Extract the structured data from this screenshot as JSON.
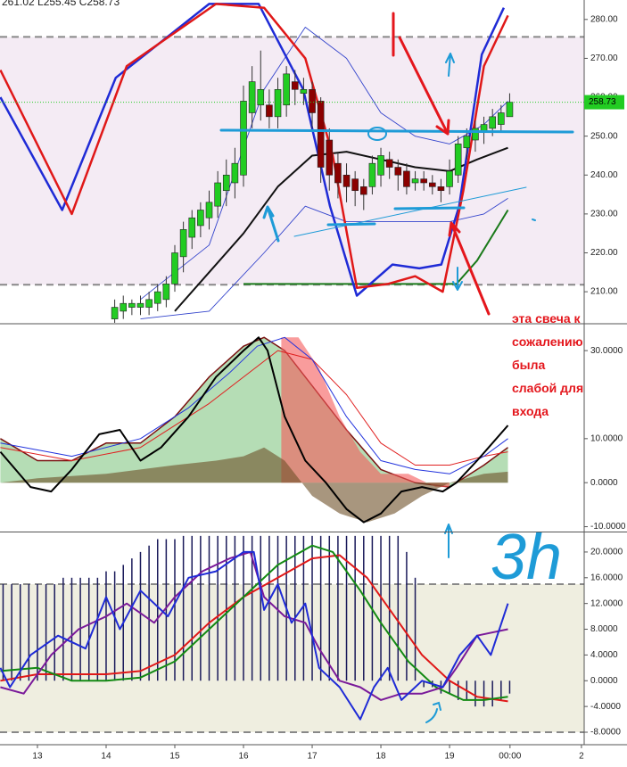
{
  "chart_data": [
    {
      "type": "candlestick",
      "header": "261.02 L255.45 C258.73",
      "x": [
        14.125,
        14.25,
        14.375,
        14.5,
        14.625,
        14.75,
        14.875,
        15,
        15.125,
        15.25,
        15.375,
        15.5,
        15.625,
        15.75,
        15.875,
        16,
        16.125,
        16.25,
        16.375,
        16.5,
        16.625,
        16.75,
        16.875,
        17,
        17.125,
        17.25,
        17.375,
        17.5,
        17.625,
        17.75,
        17.875,
        18,
        18.125,
        18.25,
        18.375,
        18.5,
        18.625,
        18.75,
        18.875,
        19,
        19.125,
        19.25,
        19.375,
        19.5,
        19.625,
        19.75,
        19.875
      ],
      "open": [
        203,
        205,
        206,
        206,
        206,
        207,
        208,
        212,
        219,
        224,
        227,
        229,
        232,
        236,
        238,
        240,
        256,
        258,
        258,
        255,
        258,
        264,
        261,
        262,
        259,
        249,
        243,
        240,
        239,
        237,
        237,
        240,
        244,
        242,
        241,
        238,
        239,
        238,
        237,
        237,
        240,
        247,
        249,
        251,
        252,
        253,
        255
      ],
      "high": [
        208,
        209,
        208,
        209,
        210,
        212,
        214,
        222,
        228,
        231,
        233,
        236,
        241,
        244,
        247,
        263,
        268,
        272,
        262,
        265,
        268,
        267,
        265,
        264,
        260,
        252,
        246,
        243,
        241,
        239,
        245,
        247,
        246,
        244,
        243,
        241,
        241,
        240,
        239,
        244,
        250,
        252,
        254,
        255,
        257,
        258,
        261.02
      ],
      "low": [
        200,
        203,
        204,
        204,
        204,
        205,
        206,
        210,
        215,
        221,
        224,
        226,
        229,
        232,
        234,
        237,
        252,
        254,
        252,
        252,
        255,
        258,
        258,
        252,
        238,
        236,
        234,
        233,
        232,
        231,
        235,
        237,
        239,
        236,
        235,
        236,
        236,
        235,
        233,
        235,
        238,
        244,
        246,
        248,
        250,
        251,
        255.45
      ],
      "close": [
        206,
        207,
        207,
        207,
        208,
        210,
        212,
        220,
        226,
        229,
        231,
        233,
        238,
        240,
        243,
        259,
        264,
        262,
        255,
        262,
        266,
        262,
        262,
        256,
        242,
        240,
        238,
        237,
        236,
        235,
        243,
        245,
        242,
        240,
        237,
        239,
        238,
        237,
        236,
        241,
        248,
        250,
        252,
        253,
        255,
        256,
        258.73
      ],
      "up_color": "#22cc22",
      "down_color": "#8b0000",
      "last": 258.73,
      "last_color": "#22cc22",
      "hlines": [
        275.5,
        211.8
      ],
      "shade": "#f4ebf4",
      "xlim": [
        12.455,
        20.96
      ],
      "ylim": [
        202,
        285
      ],
      "yticks": [
        {
          "value": 210,
          "label": "210.00"
        },
        {
          "value": 220,
          "label": "220.00"
        },
        {
          "value": 230,
          "label": "230.00"
        },
        {
          "value": 240,
          "label": "240.00"
        },
        {
          "value": 250,
          "label": "250.00"
        },
        {
          "value": 260,
          "label": "260.00"
        },
        {
          "value": 270,
          "label": "270.00"
        },
        {
          "value": 280,
          "label": "280.00"
        }
      ],
      "series": [
        {
          "color": "#3344cc",
          "width": 0.9,
          "x": [
            14.5,
            15.5,
            16.3,
            16.9,
            17.5,
            18.0,
            18.5,
            19.0,
            19.5,
            19.85
          ],
          "values": [
            208,
            222,
            262,
            278,
            270,
            256,
            250,
            248,
            253,
            259
          ]
        },
        {
          "color": "#3344cc",
          "width": 0.9,
          "x": [
            14.5,
            15.5,
            16.3,
            16.9,
            17.5,
            18.0,
            18.5,
            19.0,
            19.5,
            19.85
          ],
          "values": [
            203,
            205,
            220,
            232,
            228,
            228,
            228,
            228,
            230,
            234
          ]
        },
        {
          "color": "#111111",
          "width": 2,
          "x": [
            15.0,
            15.5,
            16.0,
            16.5,
            17.0,
            17.5,
            18.0,
            18.5,
            19.0,
            19.4,
            19.85
          ],
          "values": [
            205,
            215,
            225,
            237,
            245,
            246,
            244,
            242,
            241,
            244,
            247
          ]
        },
        {
          "color": "#1a7a1a",
          "width": 2,
          "x": [
            16.0,
            19.1,
            19.4,
            19.85
          ],
          "values": [
            212,
            212,
            218,
            231
          ]
        },
        {
          "color": "#1f2bd6",
          "width": 2.5,
          "x": [
            12.46,
            13.36,
            14.14,
            15.5,
            16.22,
            16.87,
            17.26,
            17.65,
            18.17,
            18.56,
            18.88,
            19.14,
            19.47,
            19.79
          ],
          "values": [
            260,
            231,
            265,
            284,
            284,
            262,
            232,
            209,
            217,
            216,
            217,
            232,
            271,
            283
          ]
        },
        {
          "color": "#e01818",
          "width": 2.5,
          "x": [
            12.46,
            13.5,
            14.3,
            15.6,
            16.3,
            16.9,
            17.3,
            17.65,
            18.1,
            18.5,
            18.9,
            19.2,
            19.5,
            19.85
          ],
          "values": [
            267,
            230,
            268,
            284,
            283,
            270,
            245,
            211,
            212,
            214,
            210,
            236,
            268,
            281
          ]
        }
      ],
      "annotations": [
        "эта свеча к",
        "сожалению",
        "была",
        "слабой для",
        "входа"
      ]
    },
    {
      "type": "lines",
      "xlim": [
        12.455,
        20.96
      ],
      "ylim": [
        -10.9,
        35.9
      ],
      "yticks": [
        {
          "value": -10,
          "label": "-10.0000"
        },
        {
          "value": 0,
          "label": "0.0000"
        },
        {
          "value": 10,
          "label": "10.0000"
        },
        {
          "value": 30,
          "label": "30.0000"
        }
      ],
      "series": [
        {
          "fill": "rgba(70,170,70,0.4)",
          "x": [
            12.46,
            13.0,
            13.5,
            14.0,
            14.5,
            15.0,
            15.5,
            16.0,
            16.3,
            16.6,
            17.0,
            17.5,
            18.0,
            18.5,
            19.0,
            19.5,
            19.85
          ],
          "values": [
            10,
            5,
            5,
            9,
            9,
            15,
            24,
            31,
            33,
            30,
            22,
            12,
            3,
            0,
            -1,
            4,
            8
          ],
          "color": "#7a1010",
          "width": 1.5
        },
        {
          "fill": "rgba(245,90,90,0.6)",
          "x": [
            16.55,
            16.8,
            17.1,
            17.4,
            17.7,
            18.0,
            18.4,
            18.8,
            19.0
          ],
          "values": [
            33,
            33,
            26,
            15,
            7,
            2,
            2,
            -1,
            -1
          ]
        },
        {
          "fill": "rgba(110,80,40,0.6)",
          "x": [
            12.46,
            13.0,
            14.0,
            15.0,
            15.6,
            16.0,
            16.3,
            16.6,
            17.0,
            17.4,
            17.8,
            18.2,
            18.6,
            19.0,
            19.5,
            19.85
          ],
          "values": [
            0,
            1,
            2,
            4,
            5,
            6,
            8,
            5,
            -3,
            -7,
            -9,
            -7,
            -3,
            0,
            2,
            2.5
          ]
        },
        {
          "color": "#e02020",
          "width": 1,
          "x": [
            12.46,
            13.5,
            14.5,
            15.5,
            16.5,
            17.0,
            17.5,
            18.0,
            18.5,
            19.0,
            19.5,
            19.85
          ],
          "values": [
            8,
            5,
            8,
            18,
            30,
            28,
            20,
            9,
            4,
            4,
            6,
            7
          ]
        },
        {
          "color": "#2233dd",
          "width": 1,
          "x": [
            12.46,
            13.5,
            14.5,
            15.2,
            15.8,
            16.2,
            16.6,
            17.0,
            17.5,
            18.0,
            18.5,
            19.0,
            19.5,
            19.85
          ],
          "values": [
            9,
            6,
            10,
            17,
            25,
            31,
            33,
            28,
            15,
            5,
            3,
            2,
            6,
            10
          ]
        },
        {
          "color": "#000000",
          "width": 2,
          "x": [
            12.46,
            12.9,
            13.2,
            13.5,
            13.9,
            14.2,
            14.5,
            14.8,
            15.2,
            15.6,
            16.0,
            16.22,
            16.35,
            16.6,
            16.9,
            17.2,
            17.5,
            17.75,
            18.0,
            18.3,
            18.6,
            18.9,
            19.1,
            19.4,
            19.85
          ],
          "values": [
            7,
            -1,
            -2,
            3,
            11,
            12,
            5,
            8,
            15,
            24,
            30,
            33,
            30,
            15,
            5,
            0,
            -6,
            -9,
            -7,
            -2,
            -1,
            -2,
            0,
            5,
            13
          ]
        }
      ]
    },
    {
      "type": "lines",
      "annotation": "3h",
      "hlines": [
        15,
        -8
      ],
      "shade": "#efeee0",
      "xlim": [
        12.455,
        20.96
      ],
      "ylim": [
        -9.94,
        22.9
      ],
      "xticks": [
        13,
        14,
        15,
        16,
        17,
        18,
        19,
        {
          "value": 19.88,
          "label": "00:00"
        },
        {
          "value": 20.92,
          "label": "2"
        }
      ],
      "yticks": [
        {
          "value": -8,
          "label": "-8.0000"
        },
        {
          "value": -4,
          "label": "-4.0000"
        },
        {
          "value": 0,
          "label": "0.0000"
        },
        {
          "value": 4,
          "label": "4.0000"
        },
        {
          "value": 8,
          "label": "8.0000"
        },
        {
          "value": 12,
          "label": "12.0000"
        },
        {
          "value": 16,
          "label": "16.0000"
        },
        {
          "value": 20,
          "label": "20.0000"
        }
      ],
      "bars": {
        "color": "#1a1a5a",
        "x": [
          12.5,
          12.625,
          12.75,
          12.875,
          13,
          13.125,
          13.25,
          13.375,
          13.5,
          13.625,
          13.75,
          13.875,
          14,
          14.125,
          14.25,
          14.375,
          14.5,
          14.625,
          14.75,
          14.875,
          15,
          15.125,
          15.25,
          15.375,
          15.5,
          15.625,
          15.75,
          15.875,
          16,
          16.125,
          16.25,
          16.375,
          16.5,
          16.625,
          16.75,
          16.875,
          17,
          17.125,
          17.25,
          17.375,
          17.5,
          17.625,
          17.75,
          17.875,
          18,
          18.125,
          18.25,
          18.375,
          18.5,
          18.625,
          18.75,
          18.875,
          19,
          19.125,
          19.25,
          19.375,
          19.5,
          19.625,
          19.75,
          19.875
        ],
        "values": [
          15,
          15,
          15,
          15,
          15,
          15,
          15,
          16,
          16,
          16,
          16,
          16,
          17,
          17,
          18,
          19,
          20,
          21,
          22,
          22,
          22,
          22.5,
          22.5,
          22.5,
          22.5,
          22.5,
          22.5,
          22.5,
          22.5,
          22.5,
          22.5,
          22.5,
          22.5,
          22.5,
          22.5,
          22.5,
          22.5,
          22.5,
          22.5,
          22.5,
          22.5,
          22.5,
          22.5,
          22.5,
          22.5,
          22.5,
          22.5,
          20,
          16,
          -1,
          -1,
          -2,
          -2,
          -3,
          -3,
          -4,
          -4,
          -4,
          -3,
          -2
        ]
      },
      "series": [
        {
          "color": "#e01818",
          "width": 2,
          "x": [
            12.46,
            13.0,
            13.5,
            14.0,
            14.5,
            15.0,
            15.5,
            16.0,
            16.5,
            17.0,
            17.4,
            17.8,
            18.2,
            18.6,
            19.0,
            19.4,
            19.85
          ],
          "values": [
            0,
            1,
            1,
            1,
            1.5,
            4,
            9,
            13,
            16,
            19,
            19.5,
            16,
            10,
            4,
            0,
            -2.5,
            -3.2
          ]
        },
        {
          "color": "#138a13",
          "width": 2,
          "x": [
            12.46,
            13.0,
            13.5,
            14.0,
            14.5,
            15.0,
            15.5,
            16.0,
            16.5,
            17.0,
            17.3,
            17.7,
            18.0,
            18.4,
            18.8,
            19.2,
            19.5,
            19.85
          ],
          "values": [
            1.5,
            2,
            0,
            0,
            0.5,
            3,
            8,
            13,
            18,
            21,
            20,
            14,
            9,
            3,
            -1,
            -3,
            -3,
            -2.5
          ]
        },
        {
          "color": "#7a1a9a",
          "width": 2,
          "x": [
            12.46,
            12.8,
            13.2,
            13.6,
            14.0,
            14.3,
            14.7,
            15.0,
            15.4,
            15.8,
            16.1,
            16.3,
            16.6,
            16.9,
            17.1,
            17.4,
            17.7,
            18.0,
            18.3,
            18.6,
            18.9,
            19.1,
            19.4,
            19.85
          ],
          "values": [
            -1,
            -2,
            4,
            8,
            10,
            12,
            9,
            13,
            17,
            19,
            20,
            13,
            10,
            9,
            5,
            0,
            -1,
            -3,
            -2,
            -2,
            -1,
            2,
            7,
            8
          ]
        },
        {
          "color": "#1f2bd6",
          "width": 2,
          "x": [
            12.46,
            12.6,
            12.9,
            13.3,
            13.7,
            14.0,
            14.2,
            14.5,
            14.9,
            15.2,
            15.6,
            16.0,
            16.15,
            16.3,
            16.5,
            16.7,
            16.9,
            17.1,
            17.4,
            17.7,
            17.9,
            18.1,
            18.3,
            18.6,
            18.9,
            19.15,
            19.4,
            19.6,
            19.85
          ],
          "values": [
            2,
            -1,
            4,
            7,
            5,
            13,
            8,
            14,
            10,
            16,
            17,
            20,
            20,
            11,
            15,
            9,
            12,
            2,
            -1,
            -6,
            -1,
            2,
            -3,
            0,
            -1,
            4,
            7,
            4,
            12
          ]
        }
      ]
    }
  ]
}
